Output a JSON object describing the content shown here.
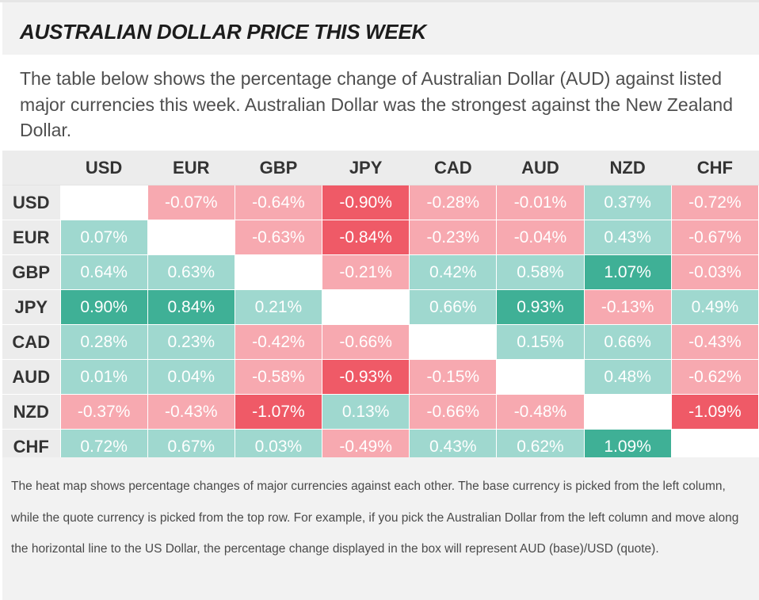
{
  "page": {
    "title": "AUSTRALIAN DOLLAR PRICE THIS WEEK",
    "intro": "The table below shows the percentage change of Australian Dollar (AUD) against listed major currencies this week. Australian Dollar was the strongest against the New Zealand Dollar.",
    "footnote": "The heat map shows percentage changes of major currencies against each other. The base currency is picked from the left column, while the quote currency is picked from the top row. For example, if you pick the Australian Dollar from the left column and move along the horizontal line to the US Dollar, the percentage change displayed in the box will represent AUD (base)/USD (quote)."
  },
  "heatmap": {
    "columns": [
      "USD",
      "EUR",
      "GBP",
      "JPY",
      "CAD",
      "AUD",
      "NZD",
      "CHF"
    ],
    "rows": [
      {
        "label": "USD",
        "cells": [
          "",
          "-0.07%",
          "-0.64%",
          "-0.90%",
          "-0.28%",
          "-0.01%",
          "0.37%",
          "-0.72%"
        ]
      },
      {
        "label": "EUR",
        "cells": [
          "0.07%",
          "",
          "-0.63%",
          "-0.84%",
          "-0.23%",
          "-0.04%",
          "0.43%",
          "-0.67%"
        ]
      },
      {
        "label": "GBP",
        "cells": [
          "0.64%",
          "0.63%",
          "",
          "-0.21%",
          "0.42%",
          "0.58%",
          "1.07%",
          "-0.03%"
        ]
      },
      {
        "label": "JPY",
        "cells": [
          "0.90%",
          "0.84%",
          "0.21%",
          "",
          "0.66%",
          "0.93%",
          "-0.13%",
          "0.49%"
        ]
      },
      {
        "label": "CAD",
        "cells": [
          "0.28%",
          "0.23%",
          "-0.42%",
          "-0.66%",
          "",
          "0.15%",
          "0.66%",
          "-0.43%"
        ]
      },
      {
        "label": "AUD",
        "cells": [
          "0.01%",
          "0.04%",
          "-0.58%",
          "-0.93%",
          "-0.15%",
          "",
          "0.48%",
          "-0.62%"
        ]
      },
      {
        "label": "NZD",
        "cells": [
          "-0.37%",
          "-0.43%",
          "-1.07%",
          "0.13%",
          "-0.66%",
          "-0.48%",
          "",
          "-1.09%"
        ]
      },
      {
        "label": "CHF",
        "cells": [
          "0.72%",
          "0.67%",
          "0.03%",
          "-0.49%",
          "0.43%",
          "0.62%",
          "1.09%",
          ""
        ]
      }
    ],
    "colors": {
      "positive_light": "#9fd8cf",
      "positive_strong": "#3fb096",
      "negative_light": "#f7a9b0",
      "negative_strong": "#ef5a67"
    }
  }
}
